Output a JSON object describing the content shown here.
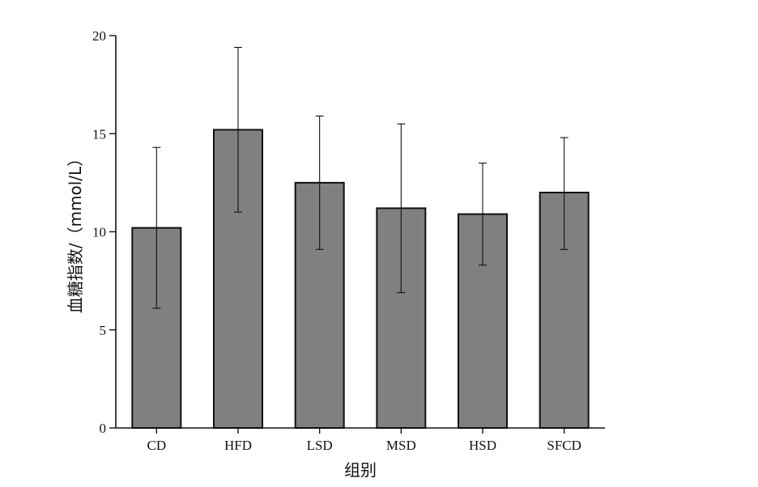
{
  "chart_data": {
    "type": "bar",
    "categories": [
      "CD",
      "HFD",
      "LSD",
      "MSD",
      "HSD",
      "SFCD"
    ],
    "values": [
      10.2,
      15.2,
      12.5,
      11.2,
      10.9,
      12.0
    ],
    "error_upper": [
      14.3,
      19.4,
      15.9,
      15.5,
      13.5,
      14.8
    ],
    "error_lower": [
      6.1,
      11.0,
      9.1,
      6.9,
      8.3,
      9.1
    ],
    "xlabel": "组别",
    "ylabel": "血糖指数/（mmol/L）",
    "ylim": [
      0,
      20
    ],
    "yticks": [
      "0",
      "5",
      "10",
      "15",
      "20"
    ],
    "grid": false,
    "legend": "none",
    "bar_color": "#808080"
  }
}
